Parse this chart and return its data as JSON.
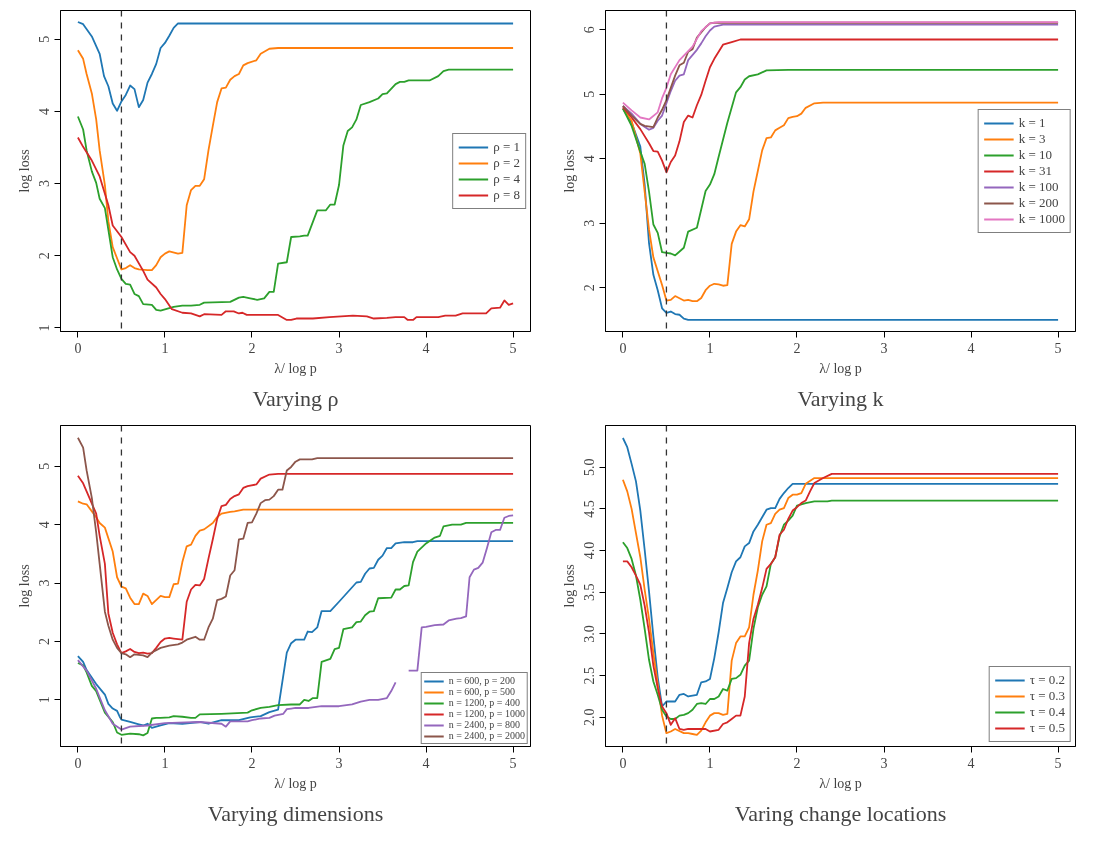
{
  "chart_data": [
    {
      "type": "line",
      "title": "Varying ρ",
      "xlabel": "λ/ log p",
      "ylabel": "log loss",
      "xlim": [
        -0.2,
        5.2
      ],
      "ylim": [
        0.95,
        5.4
      ],
      "xticks": [
        0,
        1,
        2,
        3,
        4,
        5
      ],
      "yticks": [
        1,
        2,
        3,
        4,
        5
      ],
      "grid": false,
      "legend": "right",
      "line_style": "solid",
      "ref_lines": [
        {
          "axis": "x",
          "value": 0.5,
          "color": "#333333",
          "line_style": "dashed"
        }
      ],
      "series": [
        {
          "name": "ρ = 1",
          "color": "#1f77b4",
          "x": [
            0,
            0.06,
            0.16,
            0.25,
            0.3,
            0.35,
            0.4,
            0.45,
            0.5,
            0.55,
            0.6,
            0.65,
            0.7,
            0.75,
            0.8,
            0.85,
            0.9,
            0.95,
            1.0,
            1.05,
            1.1,
            1.15,
            5.0
          ],
          "values": [
            5.24,
            5.21,
            5.04,
            4.8,
            4.49,
            4.35,
            4.11,
            4.01,
            4.14,
            4.23,
            4.36,
            4.31,
            4.06,
            4.16,
            4.4,
            4.52,
            4.66,
            4.88,
            4.95,
            5.05,
            5.16,
            5.22,
            5.22
          ]
        },
        {
          "name": "ρ = 2",
          "color": "#ff7f0e",
          "x": [
            0,
            0.06,
            0.1,
            0.16,
            0.21,
            0.25,
            0.31,
            0.35,
            0.4,
            0.5,
            0.55,
            0.6,
            0.65,
            0.7,
            0.8,
            0.85,
            0.9,
            0.95,
            1.0,
            1.05,
            1.15,
            1.2,
            1.25,
            1.3,
            1.35,
            1.4,
            1.45,
            1.5,
            1.55,
            1.6,
            1.65,
            1.7,
            1.75,
            1.8,
            1.85,
            1.9,
            1.95,
            2.05,
            2.1,
            2.2,
            2.3,
            5.0
          ],
          "values": [
            4.85,
            4.73,
            4.52,
            4.25,
            3.89,
            3.46,
            2.98,
            2.48,
            2.12,
            1.81,
            1.83,
            1.87,
            1.83,
            1.81,
            1.8,
            1.8,
            1.87,
            1.98,
            2.03,
            2.06,
            2.03,
            2.04,
            2.7,
            2.91,
            2.97,
            2.97,
            3.06,
            3.46,
            3.8,
            4.13,
            4.32,
            4.33,
            4.44,
            4.49,
            4.52,
            4.64,
            4.67,
            4.71,
            4.8,
            4.87,
            4.88,
            4.88
          ]
        },
        {
          "name": "ρ = 4",
          "color": "#2ca02c",
          "x": [
            0,
            0.06,
            0.1,
            0.16,
            0.21,
            0.25,
            0.31,
            0.35,
            0.4,
            0.45,
            0.5,
            0.55,
            0.6,
            0.65,
            0.7,
            0.75,
            0.85,
            0.9,
            0.95,
            1.04,
            1.1,
            1.2,
            1.3,
            1.4,
            1.45,
            1.75,
            1.85,
            1.9,
            1.98,
            2.06,
            2.14,
            2.2,
            2.25,
            2.3,
            2.4,
            2.45,
            2.55,
            2.6,
            2.64,
            2.75,
            2.85,
            2.9,
            2.95,
            3.0,
            3.05,
            3.1,
            3.15,
            3.2,
            3.25,
            3.35,
            3.45,
            3.5,
            3.55,
            3.65,
            3.7,
            3.75,
            3.8,
            4.04,
            4.14,
            4.2,
            4.26,
            5.0
          ],
          "values": [
            3.93,
            3.75,
            3.46,
            3.17,
            3.01,
            2.79,
            2.66,
            2.36,
            1.98,
            1.81,
            1.68,
            1.61,
            1.6,
            1.47,
            1.44,
            1.33,
            1.32,
            1.25,
            1.24,
            1.27,
            1.29,
            1.31,
            1.31,
            1.32,
            1.35,
            1.36,
            1.42,
            1.43,
            1.41,
            1.39,
            1.41,
            1.5,
            1.5,
            1.89,
            1.91,
            2.26,
            2.27,
            2.28,
            2.28,
            2.63,
            2.63,
            2.71,
            2.71,
            2.98,
            3.53,
            3.73,
            3.78,
            3.89,
            4.09,
            4.13,
            4.18,
            4.24,
            4.25,
            4.38,
            4.41,
            4.41,
            4.43,
            4.43,
            4.49,
            4.56,
            4.58,
            4.58
          ]
        },
        {
          "name": "ρ = 8",
          "color": "#d62728",
          "x": [
            0,
            0.06,
            0.16,
            0.25,
            0.35,
            0.4,
            0.5,
            0.6,
            0.65,
            0.75,
            0.8,
            0.9,
            0.95,
            1.0,
            1.08,
            1.2,
            1.3,
            1.4,
            1.45,
            1.65,
            1.7,
            1.79,
            1.85,
            1.89,
            1.94,
            2.3,
            2.4,
            2.45,
            2.51,
            2.7,
            2.89,
            3.16,
            3.32,
            3.4,
            3.55,
            3.65,
            3.75,
            3.79,
            3.85,
            3.89,
            4.14,
            4.22,
            4.34,
            4.42,
            4.69,
            4.75,
            4.85,
            4.9,
            4.95,
            5.0
          ],
          "values": [
            3.64,
            3.51,
            3.32,
            3.1,
            2.7,
            2.42,
            2.26,
            2.05,
            2.0,
            1.79,
            1.67,
            1.56,
            1.47,
            1.4,
            1.26,
            1.21,
            1.2,
            1.16,
            1.19,
            1.18,
            1.23,
            1.23,
            1.2,
            1.21,
            1.18,
            1.18,
            1.11,
            1.11,
            1.13,
            1.13,
            1.15,
            1.17,
            1.16,
            1.13,
            1.14,
            1.15,
            1.15,
            1.11,
            1.11,
            1.15,
            1.15,
            1.17,
            1.17,
            1.2,
            1.2,
            1.27,
            1.28,
            1.38,
            1.32,
            1.34
          ]
        }
      ]
    },
    {
      "type": "line",
      "title": "Varying k",
      "xlabel": "λ/ log p",
      "ylabel": "log loss",
      "xlim": [
        -0.2,
        5.2
      ],
      "ylim": [
        1.32,
        6.3
      ],
      "xticks": [
        0,
        1,
        2,
        3,
        4,
        5
      ],
      "yticks": [
        2,
        3,
        4,
        5,
        6
      ],
      "grid": false,
      "legend": "right",
      "line_style": "solid",
      "ref_lines": [
        {
          "axis": "x",
          "value": 0.5,
          "color": "#333333",
          "line_style": "dashed"
        }
      ],
      "series": [
        {
          "name": "k = 1",
          "color": "#1f77b4",
          "x": [
            0,
            0.1,
            0.2,
            0.25,
            0.3,
            0.35,
            0.4,
            0.45,
            0.5,
            0.55,
            0.6,
            0.65,
            0.7,
            0.75,
            0.85,
            5.0
          ],
          "values": [
            4.78,
            4.56,
            4.19,
            3.6,
            2.69,
            2.2,
            1.96,
            1.68,
            1.61,
            1.63,
            1.59,
            1.58,
            1.52,
            1.5,
            1.5,
            1.5
          ]
        },
        {
          "name": "k = 3",
          "color": "#ff7f0e",
          "x": [
            0,
            0.1,
            0.2,
            0.25,
            0.3,
            0.35,
            0.45,
            0.5,
            0.55,
            0.6,
            0.7,
            0.75,
            0.8,
            0.85,
            0.9,
            0.95,
            1.0,
            1.05,
            1.1,
            1.15,
            1.2,
            1.25,
            1.3,
            1.35,
            1.4,
            1.45,
            1.5,
            1.55,
            1.6,
            1.65,
            1.7,
            1.75,
            1.8,
            1.85,
            1.9,
            1.95,
            2.0,
            2.05,
            2.1,
            2.2,
            2.3,
            5.0
          ],
          "values": [
            4.78,
            4.59,
            4.08,
            3.49,
            2.9,
            2.47,
            2.04,
            1.8,
            1.81,
            1.87,
            1.8,
            1.81,
            1.79,
            1.79,
            1.84,
            1.96,
            2.03,
            2.06,
            2.05,
            2.03,
            2.04,
            2.68,
            2.87,
            2.97,
            2.95,
            3.06,
            3.49,
            3.81,
            4.13,
            4.32,
            4.33,
            4.44,
            4.48,
            4.52,
            4.63,
            4.65,
            4.66,
            4.7,
            4.79,
            4.86,
            4.87,
            4.87
          ]
        },
        {
          "name": "k = 10",
          "color": "#2ca02c",
          "x": [
            0,
            0.1,
            0.2,
            0.25,
            0.3,
            0.35,
            0.4,
            0.45,
            0.5,
            0.55,
            0.6,
            0.7,
            0.75,
            0.85,
            0.95,
            1.0,
            1.05,
            1.1,
            1.2,
            1.3,
            1.35,
            1.4,
            1.45,
            1.55,
            1.65,
            1.9,
            5.0
          ],
          "values": [
            4.78,
            4.51,
            4.11,
            3.92,
            3.49,
            2.98,
            2.85,
            2.55,
            2.54,
            2.53,
            2.5,
            2.62,
            2.87,
            2.93,
            3.5,
            3.6,
            3.76,
            4.03,
            4.56,
            5.03,
            5.11,
            5.23,
            5.28,
            5.31,
            5.37,
            5.38,
            5.38
          ]
        },
        {
          "name": "k = 31",
          "color": "#d62728",
          "x": [
            0,
            0.1,
            0.2,
            0.3,
            0.35,
            0.4,
            0.45,
            0.5,
            0.55,
            0.6,
            0.65,
            0.7,
            0.75,
            0.8,
            0.85,
            0.9,
            0.95,
            1.0,
            1.05,
            1.15,
            1.25,
            1.35,
            5.0
          ],
          "values": [
            4.8,
            4.64,
            4.46,
            4.24,
            4.12,
            4.11,
            3.97,
            3.79,
            3.95,
            4.05,
            4.27,
            4.57,
            4.67,
            4.64,
            4.83,
            4.99,
            5.21,
            5.42,
            5.55,
            5.77,
            5.81,
            5.85,
            5.85
          ]
        },
        {
          "name": "k = 100",
          "color": "#9467bd",
          "x": [
            0,
            0.1,
            0.2,
            0.3,
            0.35,
            0.4,
            0.45,
            0.5,
            0.55,
            0.6,
            0.65,
            0.7,
            0.75,
            0.85,
            0.9,
            0.95,
            1.0,
            1.05,
            1.15,
            5.0
          ],
          "values": [
            4.82,
            4.7,
            4.54,
            4.45,
            4.48,
            4.59,
            4.67,
            4.86,
            5.05,
            5.21,
            5.29,
            5.31,
            5.53,
            5.69,
            5.79,
            5.9,
            5.99,
            6.05,
            6.08,
            6.08
          ]
        },
        {
          "name": "k = 200",
          "color": "#8c564b",
          "x": [
            0,
            0.1,
            0.2,
            0.25,
            0.35,
            0.4,
            0.45,
            0.5,
            0.55,
            0.6,
            0.65,
            0.7,
            0.75,
            0.8,
            0.85,
            0.9,
            0.95,
            1.0,
            1.05,
            5.0
          ],
          "values": [
            4.82,
            4.67,
            4.54,
            4.51,
            4.49,
            4.64,
            4.76,
            4.91,
            5.1,
            5.29,
            5.45,
            5.49,
            5.66,
            5.7,
            5.88,
            5.96,
            6.04,
            6.1,
            6.11,
            6.11
          ]
        },
        {
          "name": "k = 1000",
          "color": "#e377c2",
          "x": [
            0,
            0.1,
            0.2,
            0.3,
            0.4,
            0.45,
            0.5,
            0.55,
            0.65,
            0.75,
            0.8,
            0.85,
            0.9,
            1.0,
            1.1,
            5.0
          ],
          "values": [
            4.87,
            4.75,
            4.64,
            4.61,
            4.72,
            4.94,
            5.1,
            5.31,
            5.53,
            5.67,
            5.74,
            5.86,
            5.98,
            6.1,
            6.12,
            6.12
          ]
        }
      ]
    },
    {
      "type": "line",
      "title": "Varying dimensions",
      "xlabel": "λ/ log p",
      "ylabel": "log loss",
      "xlim": [
        -0.2,
        5.2
      ],
      "ylim": [
        0.2,
        5.7
      ],
      "xticks": [
        0,
        1,
        2,
        3,
        4,
        5
      ],
      "yticks": [
        1,
        2,
        3,
        4,
        5
      ],
      "grid": false,
      "legend": "bottom right",
      "line_style": "solid",
      "ref_lines": [
        {
          "axis": "x",
          "value": 0.5,
          "color": "#333333",
          "line_style": "dashed"
        }
      ],
      "series": [
        {
          "name": "n = 600, p = 200",
          "color": "#1f77b4",
          "x": [
            0,
            0.06,
            0.1,
            0.21,
            0.31,
            0.35,
            0.4,
            0.45,
            0.48,
            0.5,
            0.6,
            0.7,
            0.75,
            0.8,
            0.85,
            0.95,
            1.05,
            1.2,
            1.4,
            1.5,
            1.65,
            1.85,
            1.98,
            2.1,
            2.2,
            2.3,
            2.4,
            2.45,
            2.5,
            2.6,
            2.64,
            2.69,
            2.75,
            2.8,
            2.9,
            3.0,
            3.2,
            3.25,
            3.3,
            3.35,
            3.4,
            3.45,
            3.5,
            3.55,
            3.6,
            3.65,
            3.75,
            3.85,
            3.9,
            5.0
          ],
          "values": [
            1.75,
            1.65,
            1.51,
            1.27,
            1.09,
            0.93,
            0.85,
            0.81,
            0.71,
            0.66,
            0.62,
            0.58,
            0.56,
            0.59,
            0.52,
            0.56,
            0.6,
            0.59,
            0.62,
            0.59,
            0.65,
            0.65,
            0.7,
            0.72,
            0.79,
            0.83,
            1.81,
            1.97,
            2.03,
            2.03,
            2.17,
            2.16,
            2.24,
            2.52,
            2.52,
            2.68,
            3.01,
            3.02,
            3.16,
            3.25,
            3.26,
            3.4,
            3.47,
            3.6,
            3.6,
            3.68,
            3.7,
            3.7,
            3.72,
            3.72
          ]
        },
        {
          "name": "n = 600, p = 500",
          "color": "#ff7f0e",
          "x": [
            0,
            0.06,
            0.1,
            0.21,
            0.25,
            0.31,
            0.4,
            0.45,
            0.5,
            0.55,
            0.6,
            0.65,
            0.7,
            0.75,
            0.8,
            0.85,
            0.95,
            1.0,
            1.05,
            1.1,
            1.15,
            1.2,
            1.25,
            1.3,
            1.35,
            1.4,
            1.45,
            1.55,
            1.6,
            1.65,
            1.75,
            1.8,
            1.9,
            5.0
          ],
          "values": [
            4.4,
            4.36,
            4.35,
            4.13,
            4.03,
            3.95,
            3.54,
            3.1,
            2.94,
            2.91,
            2.75,
            2.64,
            2.64,
            2.82,
            2.78,
            2.64,
            2.78,
            2.76,
            2.76,
            2.98,
            2.99,
            3.36,
            3.63,
            3.66,
            3.81,
            3.9,
            3.92,
            4.03,
            4.13,
            4.19,
            4.22,
            4.23,
            4.26,
            4.26
          ]
        },
        {
          "name": "n = 1200, p = 400",
          "color": "#2ca02c",
          "x": [
            0,
            0.06,
            0.1,
            0.16,
            0.21,
            0.31,
            0.4,
            0.45,
            0.5,
            0.6,
            0.7,
            0.75,
            0.8,
            0.85,
            0.9,
            0.95,
            1.05,
            1.1,
            1.2,
            1.3,
            1.35,
            1.4,
            1.65,
            1.95,
            2.0,
            2.1,
            2.2,
            2.3,
            2.45,
            2.55,
            2.6,
            2.65,
            2.7,
            2.75,
            2.8,
            2.9,
            2.95,
            3.0,
            3.05,
            3.15,
            3.2,
            3.25,
            3.3,
            3.35,
            3.4,
            3.45,
            3.6,
            3.65,
            3.7,
            3.75,
            3.8,
            3.85,
            3.9,
            4.0,
            4.1,
            4.16,
            4.2,
            4.3,
            4.4,
            4.46,
            5.0
          ],
          "values": [
            1.63,
            1.59,
            1.47,
            1.24,
            1.15,
            0.78,
            0.62,
            0.44,
            0.4,
            0.42,
            0.41,
            0.39,
            0.43,
            0.68,
            0.69,
            0.69,
            0.7,
            0.72,
            0.71,
            0.69,
            0.69,
            0.75,
            0.76,
            0.78,
            0.82,
            0.86,
            0.88,
            0.91,
            0.92,
            0.92,
            1.0,
            0.98,
            1.03,
            1.03,
            1.65,
            1.7,
            1.87,
            1.89,
            2.21,
            2.24,
            2.33,
            2.34,
            2.45,
            2.51,
            2.52,
            2.74,
            2.75,
            2.89,
            2.89,
            2.95,
            2.96,
            3.36,
            3.54,
            3.68,
            3.78,
            3.81,
            3.97,
            4.0,
            4.0,
            4.03,
            4.03
          ]
        },
        {
          "name": "n = 1200, p = 1000",
          "color": "#d62728",
          "x": [
            0,
            0.06,
            0.1,
            0.21,
            0.25,
            0.31,
            0.35,
            0.4,
            0.45,
            0.5,
            0.55,
            0.6,
            0.65,
            0.7,
            0.75,
            0.8,
            0.85,
            0.9,
            0.95,
            1.0,
            1.05,
            1.1,
            1.2,
            1.25,
            1.3,
            1.35,
            1.4,
            1.45,
            1.5,
            1.55,
            1.6,
            1.65,
            1.7,
            1.75,
            1.8,
            1.85,
            1.9,
            1.95,
            2.05,
            2.1,
            2.2,
            2.3,
            5.0
          ],
          "values": [
            4.84,
            4.71,
            4.57,
            4.19,
            3.81,
            3.33,
            2.48,
            2.15,
            1.95,
            1.8,
            1.83,
            1.87,
            1.82,
            1.8,
            1.81,
            1.79,
            1.8,
            1.89,
            1.99,
            2.05,
            2.06,
            2.05,
            2.03,
            2.68,
            2.89,
            2.97,
            2.96,
            3.07,
            3.42,
            3.75,
            4.1,
            4.32,
            4.34,
            4.44,
            4.49,
            4.52,
            4.63,
            4.66,
            4.69,
            4.79,
            4.86,
            4.87,
            4.87
          ]
        },
        {
          "name": "n = 2400, p = 800",
          "color": "#9467bd",
          "x": [
            0,
            0.1,
            0.21,
            0.31,
            0.4,
            0.5,
            0.6,
            0.8,
            1.0,
            1.4,
            1.65,
            1.7,
            1.75,
            1.95,
            2.0,
            2.1,
            2.2,
            2.26,
            2.36,
            2.4,
            2.45,
            2.5,
            2.65,
            2.8,
            3.0,
            3.15,
            3.25,
            3.35,
            3.45,
            3.55,
            3.6,
            3.65,
            3.7,
            3.75,
            3.8,
            3.9,
            3.95,
            4.0,
            4.1,
            4.2,
            4.26,
            4.35,
            4.4,
            4.46,
            4.5,
            4.55,
            4.6,
            4.65,
            4.7,
            4.75,
            4.8,
            4.85,
            4.9,
            4.95,
            5.0
          ],
          "values": [
            1.68,
            1.5,
            1.19,
            0.82,
            0.59,
            0.49,
            0.54,
            0.56,
            0.6,
            0.62,
            0.59,
            0.54,
            0.63,
            0.63,
            0.65,
            0.68,
            0.69,
            0.73,
            0.76,
            0.84,
            0.85,
            0.86,
            0.86,
            0.89,
            0.89,
            0.92,
            0.97,
            1.0,
            1.0,
            1.03,
            1.15,
            1.3,
            null,
            null,
            1.5,
            1.5,
            2.24,
            2.25,
            2.28,
            2.29,
            2.36,
            2.39,
            2.4,
            2.43,
            3.1,
            3.23,
            3.26,
            3.35,
            3.6,
            3.87,
            3.91,
            3.91,
            4.12,
            4.15,
            4.16
          ]
        },
        {
          "name": "n = 2400, p = 2000",
          "color": "#8c564b",
          "x": [
            0,
            0.06,
            0.1,
            0.16,
            0.21,
            0.25,
            0.31,
            0.35,
            0.4,
            0.45,
            0.5,
            0.55,
            0.6,
            0.65,
            0.75,
            0.8,
            0.85,
            0.95,
            1.05,
            1.15,
            1.2,
            1.25,
            1.35,
            1.4,
            1.45,
            1.5,
            1.55,
            1.6,
            1.65,
            1.7,
            1.75,
            1.8,
            1.85,
            1.9,
            1.95,
            2.0,
            2.05,
            2.1,
            2.15,
            2.2,
            2.25,
            2.3,
            2.35,
            2.4,
            2.45,
            2.5,
            2.55,
            2.69,
            2.75,
            5.0
          ],
          "values": [
            5.49,
            5.32,
            4.93,
            4.46,
            3.87,
            3.33,
            2.51,
            2.27,
            2.03,
            1.89,
            1.8,
            1.78,
            1.73,
            1.78,
            1.76,
            1.73,
            1.81,
            1.89,
            1.93,
            1.95,
            1.98,
            2.03,
            2.08,
            2.03,
            2.03,
            2.24,
            2.39,
            2.71,
            2.73,
            2.77,
            3.13,
            3.22,
            3.75,
            3.76,
            4.03,
            4.04,
            4.19,
            4.37,
            4.42,
            4.43,
            4.49,
            4.6,
            4.6,
            4.93,
            4.99,
            5.08,
            5.12,
            5.12,
            5.14,
            5.14
          ]
        }
      ]
    },
    {
      "type": "line",
      "title": "Varing change locations",
      "xlabel": "λ/ log p",
      "ylabel": "log loss",
      "xlim": [
        -0.2,
        5.2
      ],
      "ylim": [
        1.65,
        5.5
      ],
      "xticks": [
        0,
        1,
        2,
        3,
        4,
        5
      ],
      "yticks": [
        {
          "value": 2,
          "label": "2.0"
        },
        2.5,
        {
          "value": 3,
          "label": "3.0"
        },
        3.5,
        {
          "value": 4,
          "label": "4.0"
        },
        4.5,
        {
          "value": 5,
          "label": "5.0"
        }
      ],
      "grid": false,
      "legend": "bottom right",
      "line_style": "solid",
      "ref_lines": [
        {
          "axis": "x",
          "value": 0.5,
          "color": "#333333",
          "line_style": "dashed"
        }
      ],
      "series": [
        {
          "name": "τ = 0.2",
          "color": "#1f77b4",
          "x": [
            0,
            0.05,
            0.1,
            0.15,
            0.2,
            0.25,
            0.3,
            0.35,
            0.4,
            0.45,
            0.5,
            0.55,
            0.6,
            0.65,
            0.7,
            0.75,
            0.85,
            0.9,
            0.95,
            1.0,
            1.05,
            1.1,
            1.15,
            1.2,
            1.25,
            1.3,
            1.35,
            1.4,
            1.45,
            1.5,
            1.55,
            1.6,
            1.65,
            1.7,
            1.75,
            1.8,
            1.85,
            1.9,
            1.95,
            5.0
          ],
          "values": [
            5.35,
            5.24,
            5.04,
            4.83,
            4.48,
            4.01,
            3.51,
            2.97,
            2.48,
            2.13,
            2.19,
            2.19,
            2.19,
            2.27,
            2.28,
            2.25,
            2.27,
            2.42,
            2.43,
            2.46,
            2.71,
            3.02,
            3.37,
            3.55,
            3.74,
            3.87,
            3.92,
            4.05,
            4.09,
            4.23,
            4.31,
            4.4,
            4.49,
            4.51,
            4.51,
            4.62,
            4.69,
            4.75,
            4.8,
            4.8
          ]
        },
        {
          "name": "τ = 0.3",
          "color": "#ff7f0e",
          "x": [
            0,
            0.05,
            0.1,
            0.15,
            0.2,
            0.25,
            0.3,
            0.35,
            0.4,
            0.45,
            0.5,
            0.55,
            0.6,
            0.7,
            0.75,
            0.8,
            0.85,
            0.9,
            0.95,
            1.0,
            1.05,
            1.1,
            1.15,
            1.2,
            1.25,
            1.3,
            1.35,
            1.4,
            1.45,
            1.5,
            1.55,
            1.6,
            1.65,
            1.7,
            1.75,
            1.8,
            1.85,
            1.9,
            1.95,
            2.0,
            2.05,
            2.1,
            2.2,
            2.3,
            5.0
          ],
          "values": [
            4.85,
            4.71,
            4.5,
            4.21,
            3.92,
            3.53,
            3.18,
            2.77,
            2.4,
            2.02,
            1.81,
            1.83,
            1.86,
            1.81,
            1.81,
            1.8,
            1.79,
            1.84,
            1.94,
            2.02,
            2.05,
            2.05,
            2.03,
            2.04,
            2.68,
            2.89,
            2.97,
            2.97,
            3.08,
            3.47,
            3.76,
            4.11,
            4.31,
            4.33,
            4.44,
            4.49,
            4.51,
            4.63,
            4.67,
            4.67,
            4.69,
            4.8,
            4.87,
            4.87,
            4.87
          ]
        },
        {
          "name": "τ = 0.4",
          "color": "#2ca02c",
          "x": [
            0,
            0.05,
            0.1,
            0.15,
            0.2,
            0.25,
            0.3,
            0.35,
            0.4,
            0.45,
            0.5,
            0.55,
            0.6,
            0.65,
            0.7,
            0.75,
            0.8,
            0.85,
            0.9,
            0.95,
            1.0,
            1.05,
            1.1,
            1.15,
            1.2,
            1.25,
            1.3,
            1.35,
            1.4,
            1.45,
            1.5,
            1.55,
            1.6,
            1.65,
            1.7,
            1.75,
            1.8,
            1.85,
            1.9,
            1.95,
            2.0,
            2.1,
            2.2,
            2.35,
            2.4,
            5.0
          ],
          "values": [
            4.1,
            4.03,
            3.9,
            3.7,
            3.41,
            3.06,
            2.69,
            2.43,
            2.27,
            2.09,
            2.01,
            1.98,
            1.98,
            2.02,
            2.03,
            2.05,
            2.09,
            2.16,
            2.17,
            2.16,
            2.22,
            2.22,
            2.25,
            2.34,
            2.32,
            2.46,
            2.47,
            2.51,
            2.62,
            2.68,
            3.06,
            3.32,
            3.47,
            3.57,
            3.84,
            3.92,
            4.17,
            4.31,
            4.36,
            4.42,
            4.54,
            4.57,
            4.59,
            4.59,
            4.6,
            4.6
          ]
        },
        {
          "name": "τ = 0.5",
          "color": "#d62728",
          "x": [
            0,
            0.05,
            0.1,
            0.15,
            0.2,
            0.25,
            0.3,
            0.35,
            0.4,
            0.45,
            0.5,
            0.55,
            0.6,
            0.65,
            0.7,
            0.75,
            0.95,
            1.0,
            1.1,
            1.15,
            1.2,
            1.25,
            1.3,
            1.35,
            1.4,
            1.45,
            1.5,
            1.55,
            1.6,
            1.65,
            1.7,
            1.75,
            1.8,
            1.85,
            1.9,
            1.95,
            2.0,
            2.05,
            2.1,
            2.15,
            2.2,
            2.25,
            2.3,
            2.4,
            5.0
          ],
          "values": [
            3.87,
            3.87,
            3.8,
            3.7,
            3.59,
            3.34,
            3.02,
            2.62,
            2.35,
            2.13,
            2.05,
            1.91,
            1.99,
            1.86,
            1.85,
            1.86,
            1.86,
            1.83,
            1.85,
            1.92,
            1.94,
            1.98,
            2.02,
            2.02,
            2.25,
            2.89,
            3.18,
            3.35,
            3.55,
            3.78,
            3.84,
            3.92,
            4.19,
            4.25,
            4.38,
            4.48,
            4.52,
            4.57,
            4.6,
            4.71,
            4.81,
            4.84,
            4.87,
            4.92,
            4.92
          ]
        }
      ]
    }
  ]
}
